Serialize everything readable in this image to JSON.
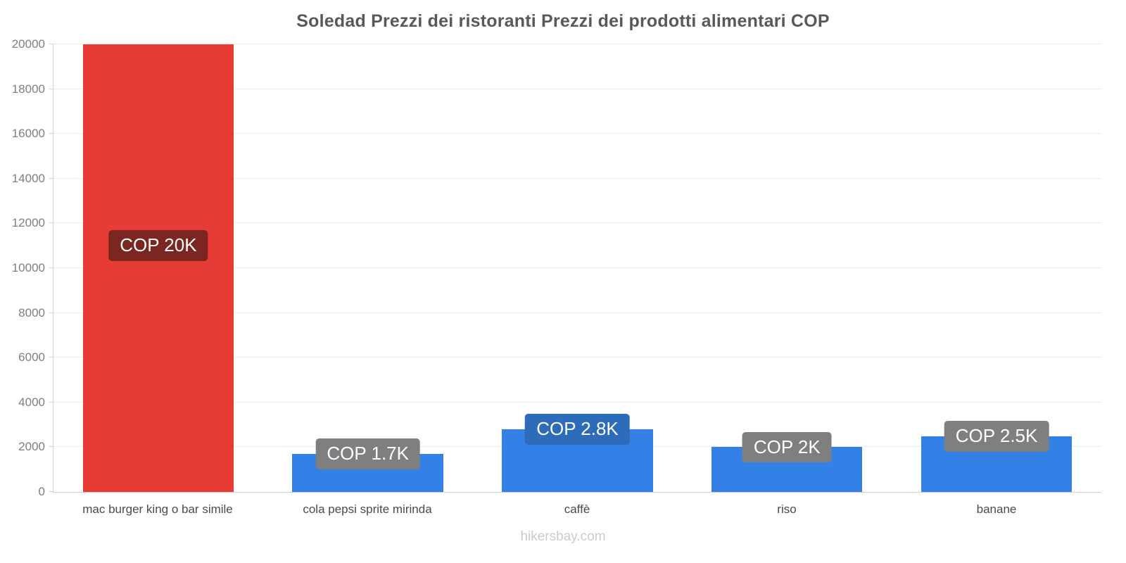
{
  "title": "Soledad Prezzi dei ristoranti Prezzi dei prodotti alimentari COP",
  "footer": "hikersbay.com",
  "chart_data": {
    "type": "bar",
    "title": "Soledad Prezzi dei ristoranti Prezzi dei prodotti alimentari COP",
    "categories": [
      "mac burger king o bar simile",
      "cola pepsi sprite mirinda",
      "caffè",
      "riso",
      "banane"
    ],
    "values": [
      20000,
      1700,
      2800,
      2000,
      2500
    ],
    "bar_labels": [
      "COP 20K",
      "COP 1.7K",
      "COP 2.8K",
      "COP 2K",
      "COP 2.5K"
    ],
    "bar_colors": [
      "#e63c35",
      "#3381e6",
      "#3381e6",
      "#3381e6",
      "#3381e6"
    ],
    "label_bg_colors": [
      "#7b2620",
      "#7f7f7f",
      "#2d6cb8",
      "#7f7f7f",
      "#7f7f7f"
    ],
    "xlabel": "",
    "ylabel": "",
    "ylim": [
      0,
      20000
    ],
    "ytick_step": 2000,
    "grid": true,
    "legend": false,
    "currency": "COP"
  }
}
